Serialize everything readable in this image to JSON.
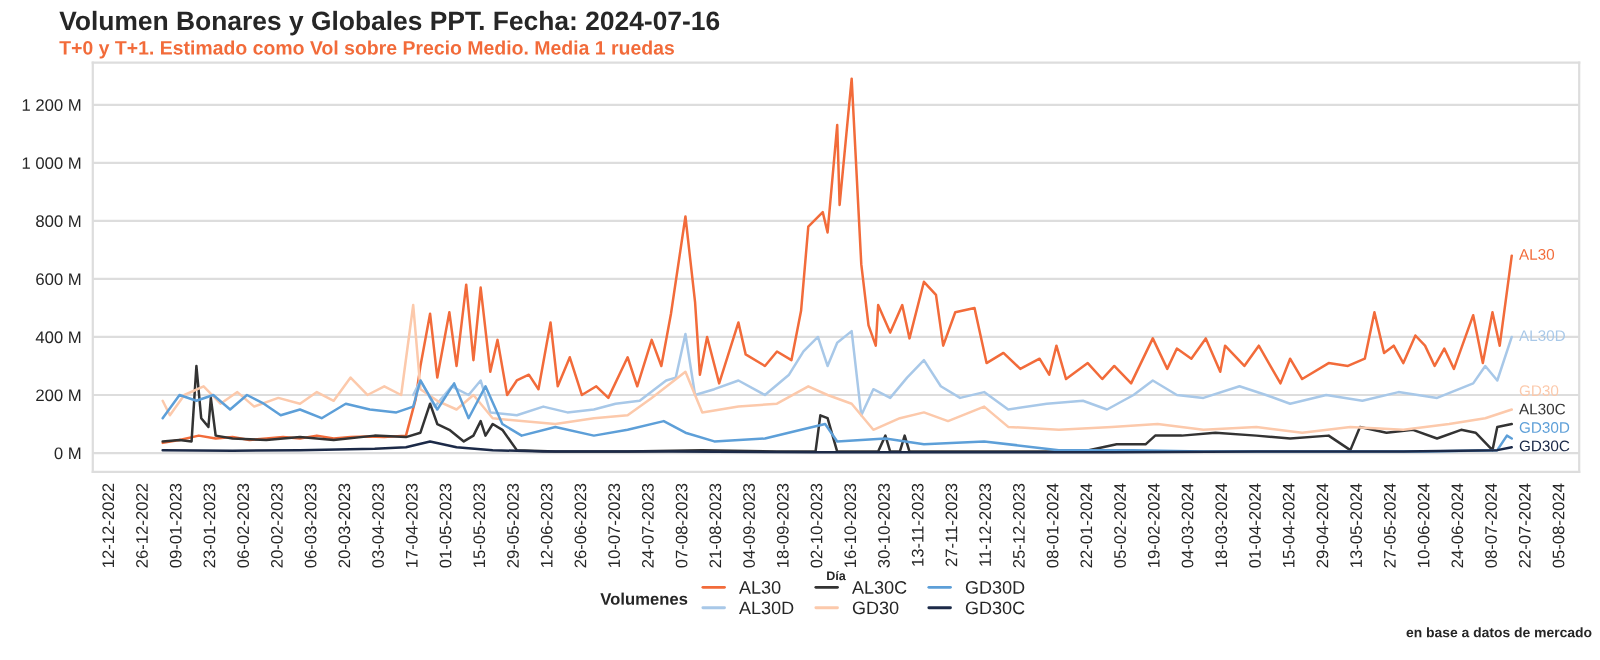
{
  "chart_data": {
    "type": "line",
    "title": "Volumen Bonares y Globales PPT. Fecha: 2024-07-16",
    "subtitle": "T+0 y T+1. Estimado como Vol sobre Precio Medio. Media 1 ruedas",
    "xlabel": "Día",
    "legend_title": "Volumenes",
    "legend": "bottom",
    "grid": "y",
    "annotations": [
      "en base a datos de mercado"
    ],
    "ylim": [
      -65,
      1345
    ],
    "yticks": [
      {
        "value": 0,
        "label": "0 M"
      },
      {
        "value": 200,
        "label": "200 M"
      },
      {
        "value": 400,
        "label": "400 M"
      },
      {
        "value": 600,
        "label": "600 M"
      },
      {
        "value": 800,
        "label": "800 M"
      },
      {
        "value": 1000,
        "label": "1 000 M"
      },
      {
        "value": 1200,
        "label": "1 200 M"
      }
    ],
    "xlim": [
      "2022-12-05",
      "2024-08-13"
    ],
    "xticks": [
      {
        "value": "2022-12-12",
        "label": "12-12-2022"
      },
      {
        "value": "2022-12-26",
        "label": "26-12-2022"
      },
      {
        "value": "2023-01-09",
        "label": "09-01-2023"
      },
      {
        "value": "2023-01-23",
        "label": "23-01-2023"
      },
      {
        "value": "2023-02-06",
        "label": "06-02-2023"
      },
      {
        "value": "2023-02-20",
        "label": "20-02-2023"
      },
      {
        "value": "2023-03-06",
        "label": "06-03-2023"
      },
      {
        "value": "2023-03-20",
        "label": "20-03-2023"
      },
      {
        "value": "2023-04-03",
        "label": "03-04-2023"
      },
      {
        "value": "2023-04-17",
        "label": "17-04-2023"
      },
      {
        "value": "2023-05-01",
        "label": "01-05-2023"
      },
      {
        "value": "2023-05-15",
        "label": "15-05-2023"
      },
      {
        "value": "2023-05-29",
        "label": "29-05-2023"
      },
      {
        "value": "2023-06-12",
        "label": "12-06-2023"
      },
      {
        "value": "2023-06-26",
        "label": "26-06-2023"
      },
      {
        "value": "2023-07-10",
        "label": "10-07-2023"
      },
      {
        "value": "2023-07-24",
        "label": "24-07-2023"
      },
      {
        "value": "2023-08-07",
        "label": "07-08-2023"
      },
      {
        "value": "2023-08-21",
        "label": "21-08-2023"
      },
      {
        "value": "2023-09-04",
        "label": "04-09-2023"
      },
      {
        "value": "2023-09-18",
        "label": "18-09-2023"
      },
      {
        "value": "2023-10-02",
        "label": "02-10-2023"
      },
      {
        "value": "2023-10-16",
        "label": "16-10-2023"
      },
      {
        "value": "2023-10-30",
        "label": "30-10-2023"
      },
      {
        "value": "2023-11-13",
        "label": "13-11-2023"
      },
      {
        "value": "2023-11-27",
        "label": "27-11-2023"
      },
      {
        "value": "2023-12-11",
        "label": "11-12-2023"
      },
      {
        "value": "2023-12-25",
        "label": "25-12-2023"
      },
      {
        "value": "2024-01-08",
        "label": "08-01-2024"
      },
      {
        "value": "2024-01-22",
        "label": "22-01-2024"
      },
      {
        "value": "2024-02-05",
        "label": "05-02-2024"
      },
      {
        "value": "2024-02-19",
        "label": "19-02-2024"
      },
      {
        "value": "2024-03-04",
        "label": "04-03-2024"
      },
      {
        "value": "2024-03-18",
        "label": "18-03-2024"
      },
      {
        "value": "2024-04-01",
        "label": "01-04-2024"
      },
      {
        "value": "2024-04-15",
        "label": "15-04-2024"
      },
      {
        "value": "2024-04-29",
        "label": "29-04-2024"
      },
      {
        "value": "2024-05-13",
        "label": "13-05-2024"
      },
      {
        "value": "2024-05-27",
        "label": "27-05-2024"
      },
      {
        "value": "2024-06-10",
        "label": "10-06-2024"
      },
      {
        "value": "2024-06-24",
        "label": "24-06-2024"
      },
      {
        "value": "2024-07-08",
        "label": "08-07-2024"
      },
      {
        "value": "2024-07-22",
        "label": "22-07-2024"
      },
      {
        "value": "2024-08-05",
        "label": "05-08-2024"
      }
    ],
    "series": [
      {
        "name": "AL30",
        "color": "#f26b3a",
        "x": [
          "2023-01-03",
          "2023-01-10",
          "2023-01-18",
          "2023-01-25",
          "2023-02-01",
          "2023-02-08",
          "2023-02-15",
          "2023-02-22",
          "2023-03-01",
          "2023-03-08",
          "2023-03-15",
          "2023-03-22",
          "2023-03-29",
          "2023-04-05",
          "2023-04-14",
          "2023-04-18",
          "2023-04-20",
          "2023-04-24",
          "2023-04-27",
          "2023-05-02",
          "2023-05-05",
          "2023-05-09",
          "2023-05-12",
          "2023-05-15",
          "2023-05-19",
          "2023-05-22",
          "2023-05-26",
          "2023-05-30",
          "2023-06-04",
          "2023-06-08",
          "2023-06-13",
          "2023-06-16",
          "2023-06-21",
          "2023-06-26",
          "2023-07-02",
          "2023-07-07",
          "2023-07-15",
          "2023-07-19",
          "2023-07-25",
          "2023-07-29",
          "2023-08-02",
          "2023-08-08",
          "2023-08-12",
          "2023-08-14",
          "2023-08-17",
          "2023-08-22",
          "2023-08-30",
          "2023-09-02",
          "2023-09-10",
          "2023-09-15",
          "2023-09-21",
          "2023-09-25",
          "2023-09-28",
          "2023-10-04",
          "2023-10-06",
          "2023-10-10",
          "2023-10-11",
          "2023-10-16",
          "2023-10-20",
          "2023-10-23",
          "2023-10-26",
          "2023-10-27",
          "2023-11-01",
          "2023-11-06",
          "2023-11-09",
          "2023-11-15",
          "2023-11-20",
          "2023-11-23",
          "2023-11-28",
          "2023-12-06",
          "2023-12-11",
          "2023-12-18",
          "2023-12-25",
          "2024-01-02",
          "2024-01-06",
          "2024-01-09",
          "2024-01-13",
          "2024-01-22",
          "2024-01-28",
          "2024-02-02",
          "2024-02-09",
          "2024-02-18",
          "2024-02-24",
          "2024-02-28",
          "2024-03-05",
          "2024-03-11",
          "2024-03-17",
          "2024-03-19",
          "2024-03-27",
          "2024-04-02",
          "2024-04-11",
          "2024-04-15",
          "2024-04-20",
          "2024-05-01",
          "2024-05-09",
          "2024-05-16",
          "2024-05-20",
          "2024-05-24",
          "2024-05-28",
          "2024-06-01",
          "2024-06-06",
          "2024-06-10",
          "2024-06-14",
          "2024-06-18",
          "2024-06-22",
          "2024-06-30",
          "2024-07-04",
          "2024-07-08",
          "2024-07-11",
          "2024-07-16"
        ],
        "values": [
          35,
          45,
          60,
          50,
          55,
          45,
          50,
          55,
          50,
          60,
          50,
          55,
          57,
          55,
          60,
          185,
          300,
          480,
          260,
          485,
          300,
          580,
          320,
          570,
          280,
          390,
          200,
          250,
          270,
          220,
          450,
          230,
          330,
          200,
          230,
          190,
          330,
          230,
          390,
          300,
          480,
          815,
          520,
          270,
          400,
          240,
          450,
          340,
          300,
          350,
          320,
          490,
          780,
          830,
          760,
          1130,
          855,
          1290,
          650,
          440,
          370,
          510,
          415,
          510,
          395,
          590,
          545,
          370,
          485,
          500,
          310,
          345,
          290,
          325,
          270,
          370,
          255,
          310,
          255,
          300,
          240,
          395,
          290,
          360,
          325,
          395,
          280,
          370,
          300,
          370,
          240,
          325,
          255,
          310,
          300,
          325,
          485,
          345,
          370,
          310,
          405,
          370,
          300,
          360,
          290,
          475,
          310,
          485,
          370,
          680
        ]
      },
      {
        "name": "AL30D",
        "color": "#a8c8e8",
        "x": [
          "2023-04-17",
          "2023-04-20",
          "2023-04-26",
          "2023-05-03",
          "2023-05-10",
          "2023-05-15",
          "2023-05-19",
          "2023-05-30",
          "2023-06-10",
          "2023-06-20",
          "2023-07-01",
          "2023-07-10",
          "2023-07-20",
          "2023-07-31",
          "2023-08-04",
          "2023-08-08",
          "2023-08-12",
          "2023-08-20",
          "2023-08-30",
          "2023-09-10",
          "2023-09-20",
          "2023-09-26",
          "2023-10-02",
          "2023-10-06",
          "2023-10-10",
          "2023-10-16",
          "2023-10-20",
          "2023-10-25",
          "2023-11-01",
          "2023-11-08",
          "2023-11-15",
          "2023-11-22",
          "2023-11-30",
          "2023-12-10",
          "2023-12-20",
          "2024-01-05",
          "2024-01-20",
          "2024-01-30",
          "2024-02-10",
          "2024-02-18",
          "2024-02-28",
          "2024-03-10",
          "2024-03-25",
          "2024-04-05",
          "2024-04-15",
          "2024-04-30",
          "2024-05-15",
          "2024-05-30",
          "2024-06-15",
          "2024-06-30",
          "2024-07-05",
          "2024-07-10",
          "2024-07-16"
        ],
        "values": [
          200,
          250,
          160,
          230,
          200,
          250,
          140,
          130,
          160,
          140,
          150,
          170,
          180,
          250,
          260,
          410,
          200,
          220,
          250,
          200,
          270,
          350,
          400,
          300,
          380,
          420,
          130,
          220,
          190,
          260,
          320,
          230,
          190,
          210,
          150,
          170,
          180,
          150,
          200,
          250,
          200,
          190,
          230,
          200,
          170,
          200,
          180,
          210,
          190,
          240,
          300,
          250,
          400
        ]
      },
      {
        "name": "AL30C",
        "color": "#333333",
        "x": [
          "2023-01-03",
          "2023-01-10",
          "2023-01-15",
          "2023-01-17",
          "2023-01-19",
          "2023-01-22",
          "2023-01-23",
          "2023-01-25",
          "2023-02-01",
          "2023-02-15",
          "2023-03-01",
          "2023-03-15",
          "2023-04-01",
          "2023-04-14",
          "2023-04-20",
          "2023-04-24",
          "2023-04-27",
          "2023-05-02",
          "2023-05-08",
          "2023-05-12",
          "2023-05-15",
          "2023-05-17",
          "2023-05-20",
          "2023-05-24",
          "2023-05-30",
          "2023-06-15",
          "2023-07-15",
          "2023-08-15",
          "2023-09-15",
          "2023-10-01",
          "2023-10-03",
          "2023-10-06",
          "2023-10-10",
          "2023-10-27",
          "2023-10-30",
          "2023-11-01",
          "2023-11-05",
          "2023-11-07",
          "2023-11-09",
          "2023-12-15",
          "2024-01-20",
          "2024-02-03",
          "2024-02-15",
          "2024-02-19",
          "2024-03-01",
          "2024-03-15",
          "2024-04-01",
          "2024-04-15",
          "2024-05-01",
          "2024-05-10",
          "2024-05-14",
          "2024-05-25",
          "2024-06-05",
          "2024-06-15",
          "2024-06-25",
          "2024-07-01",
          "2024-07-08",
          "2024-07-10",
          "2024-07-16"
        ],
        "values": [
          40,
          45,
          40,
          300,
          120,
          90,
          190,
          60,
          50,
          45,
          55,
          45,
          60,
          55,
          70,
          170,
          100,
          80,
          40,
          60,
          110,
          60,
          100,
          80,
          10,
          5,
          5,
          10,
          5,
          5,
          130,
          120,
          5,
          5,
          60,
          5,
          5,
          60,
          5,
          5,
          5,
          30,
          30,
          60,
          60,
          70,
          60,
          50,
          60,
          10,
          90,
          70,
          80,
          50,
          80,
          70,
          10,
          90,
          100
        ]
      },
      {
        "name": "GD30",
        "color": "#fcc9ab",
        "x": [
          "2023-01-03",
          "2023-01-06",
          "2023-01-12",
          "2023-01-20",
          "2023-01-27",
          "2023-02-03",
          "2023-02-10",
          "2023-02-20",
          "2023-03-01",
          "2023-03-08",
          "2023-03-15",
          "2023-03-22",
          "2023-03-29",
          "2023-04-05",
          "2023-04-12",
          "2023-04-17",
          "2023-04-20",
          "2023-04-27",
          "2023-05-05",
          "2023-05-12",
          "2023-05-20",
          "2023-06-01",
          "2023-06-15",
          "2023-07-01",
          "2023-07-15",
          "2023-07-25",
          "2023-08-08",
          "2023-08-15",
          "2023-08-30",
          "2023-09-15",
          "2023-09-28",
          "2023-10-06",
          "2023-10-16",
          "2023-10-25",
          "2023-11-05",
          "2023-11-15",
          "2023-11-25",
          "2023-12-10",
          "2023-12-20",
          "2024-01-10",
          "2024-02-01",
          "2024-02-20",
          "2024-03-10",
          "2024-04-01",
          "2024-04-20",
          "2024-05-10",
          "2024-06-01",
          "2024-06-20",
          "2024-07-05",
          "2024-07-16"
        ],
        "values": [
          180,
          130,
          200,
          230,
          170,
          210,
          160,
          190,
          170,
          210,
          180,
          260,
          200,
          230,
          200,
          510,
          220,
          180,
          150,
          200,
          120,
          110,
          100,
          120,
          130,
          190,
          280,
          140,
          160,
          170,
          230,
          200,
          170,
          80,
          120,
          140,
          110,
          160,
          90,
          80,
          90,
          100,
          80,
          90,
          70,
          90,
          80,
          100,
          120,
          150
        ]
      },
      {
        "name": "GD30D",
        "color": "#5d9fd8",
        "x": [
          "2023-01-03",
          "2023-01-10",
          "2023-01-17",
          "2023-01-24",
          "2023-01-31",
          "2023-02-07",
          "2023-02-14",
          "2023-02-21",
          "2023-03-01",
          "2023-03-10",
          "2023-03-20",
          "2023-03-30",
          "2023-04-10",
          "2023-04-17",
          "2023-04-20",
          "2023-04-27",
          "2023-05-04",
          "2023-05-10",
          "2023-05-17",
          "2023-05-24",
          "2023-06-01",
          "2023-06-15",
          "2023-07-01",
          "2023-07-15",
          "2023-07-30",
          "2023-08-08",
          "2023-08-20",
          "2023-09-10",
          "2023-09-25",
          "2023-10-05",
          "2023-10-10",
          "2023-10-30",
          "2023-11-15",
          "2023-12-10",
          "2024-01-10",
          "2024-02-10",
          "2024-03-10",
          "2024-04-10",
          "2024-05-10",
          "2024-06-10",
          "2024-07-10",
          "2024-07-14",
          "2024-07-16"
        ],
        "values": [
          120,
          200,
          180,
          200,
          150,
          200,
          170,
          130,
          150,
          120,
          170,
          150,
          140,
          160,
          250,
          150,
          240,
          120,
          230,
          100,
          60,
          90,
          60,
          80,
          110,
          70,
          40,
          50,
          80,
          100,
          40,
          50,
          30,
          40,
          10,
          10,
          5,
          5,
          5,
          5,
          10,
          60,
          50
        ]
      },
      {
        "name": "GD30C",
        "color": "#1c2a48",
        "x": [
          "2023-01-03",
          "2023-02-01",
          "2023-03-01",
          "2023-04-01",
          "2023-04-14",
          "2023-04-24",
          "2023-05-05",
          "2023-05-20",
          "2023-06-10",
          "2023-08-01",
          "2023-10-01",
          "2023-12-01",
          "2024-02-01",
          "2024-04-01",
          "2024-06-01",
          "2024-07-10",
          "2024-07-16"
        ],
        "values": [
          10,
          8,
          10,
          15,
          20,
          40,
          20,
          10,
          5,
          5,
          3,
          3,
          3,
          5,
          5,
          10,
          20
        ]
      }
    ]
  }
}
